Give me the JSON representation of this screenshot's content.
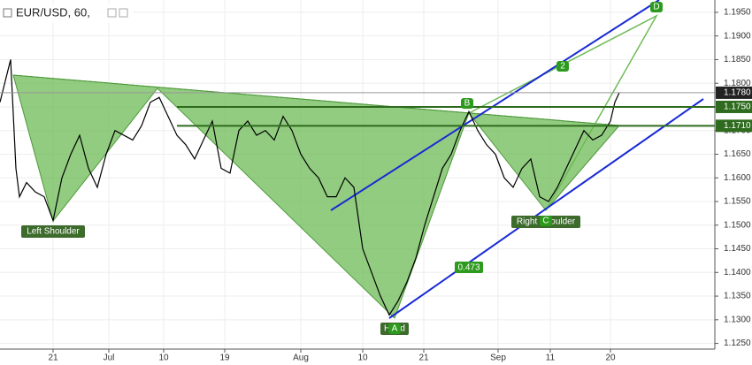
{
  "chart_data": {
    "type": "line",
    "title": "EUR/USD, 60,",
    "x": [
      0,
      12,
      18,
      22,
      30,
      40,
      50,
      60,
      70,
      80,
      90,
      100,
      110,
      120,
      130,
      140,
      150,
      160,
      170,
      180,
      190,
      200,
      210,
      220,
      230,
      240,
      250,
      260,
      270,
      280,
      290,
      300,
      310,
      320,
      330,
      340,
      350,
      360,
      370,
      380,
      390,
      400,
      410,
      420,
      430,
      440,
      450,
      460,
      470,
      480,
      490,
      500,
      510,
      520,
      530,
      540,
      550,
      560,
      570,
      580,
      590,
      600,
      610,
      620,
      630,
      640,
      650,
      660,
      670,
      680,
      690,
      695,
      700
    ],
    "series": [
      {
        "color": "#000000",
        "values": [
          1.176,
          1.185,
          1.162,
          1.156,
          1.159,
          1.157,
          1.156,
          1.151,
          1.16,
          1.165,
          1.169,
          1.162,
          1.158,
          1.165,
          1.17,
          1.169,
          1.168,
          1.171,
          1.176,
          1.177,
          1.173,
          1.169,
          1.167,
          1.164,
          1.168,
          1.172,
          1.162,
          1.161,
          1.17,
          1.172,
          1.169,
          1.17,
          1.168,
          1.173,
          1.17,
          1.165,
          1.162,
          1.16,
          1.156,
          1.156,
          1.16,
          1.158,
          1.145,
          1.14,
          1.135,
          1.131,
          1.134,
          1.138,
          1.143,
          1.15,
          1.156,
          1.162,
          1.165,
          1.17,
          1.174,
          1.17,
          1.167,
          1.165,
          1.16,
          1.158,
          1.162,
          1.164,
          1.156,
          1.155,
          1.158,
          1.162,
          1.166,
          1.17,
          1.168,
          1.169,
          1.172,
          1.176,
          1.178
        ]
      }
    ],
    "xlim": [
      0,
      808
    ],
    "xticks": [
      {
        "value": 60,
        "label": "21"
      },
      {
        "value": 123,
        "label": "Jul"
      },
      {
        "value": 185,
        "label": "10"
      },
      {
        "value": 254,
        "label": "19"
      },
      {
        "value": 340,
        "label": "Aug"
      },
      {
        "value": 410,
        "label": "10"
      },
      {
        "value": 479,
        "label": "21"
      },
      {
        "value": 563,
        "label": "Sep"
      },
      {
        "value": 622,
        "label": "11"
      },
      {
        "value": 690,
        "label": "20"
      }
    ],
    "ylim": [
      1.1238,
      1.1976
    ],
    "yticks": [
      {
        "value": 1.125,
        "label": "1.1250"
      },
      {
        "value": 1.13,
        "label": "1.1300"
      },
      {
        "value": 1.135,
        "label": "1.1350"
      },
      {
        "value": 1.14,
        "label": "1.1400"
      },
      {
        "value": 1.145,
        "label": "1.1450"
      },
      {
        "value": 1.15,
        "label": "1.1500"
      },
      {
        "value": 1.155,
        "label": "1.1550"
      },
      {
        "value": 1.16,
        "label": "1.1600"
      },
      {
        "value": 1.165,
        "label": "1.1650"
      },
      {
        "value": 1.17,
        "label": "1.1700"
      },
      {
        "value": 1.175,
        "label": "1.1750"
      },
      {
        "value": 1.18,
        "label": "1.1800"
      },
      {
        "value": 1.185,
        "label": "1.1850"
      },
      {
        "value": 1.19,
        "label": "1.1900"
      },
      {
        "value": 1.195,
        "label": "1.1950"
      }
    ],
    "grid": true,
    "price_lines": [
      {
        "value": 1.178,
        "label": "1.1780",
        "color": "#999999",
        "box": "#222222"
      },
      {
        "value": 1.175,
        "label": "1.1750",
        "color": "#2e6b1e",
        "box": "#2e6b1e"
      },
      {
        "value": 1.171,
        "label": "1.1710",
        "color": "#2e6b1e",
        "box": "#2e6b1e"
      }
    ],
    "annotations": [
      "Left Shoulder",
      "Head",
      "Right Shoulder",
      "A",
      "B",
      "C",
      "D",
      "2",
      "0.473"
    ]
  }
}
